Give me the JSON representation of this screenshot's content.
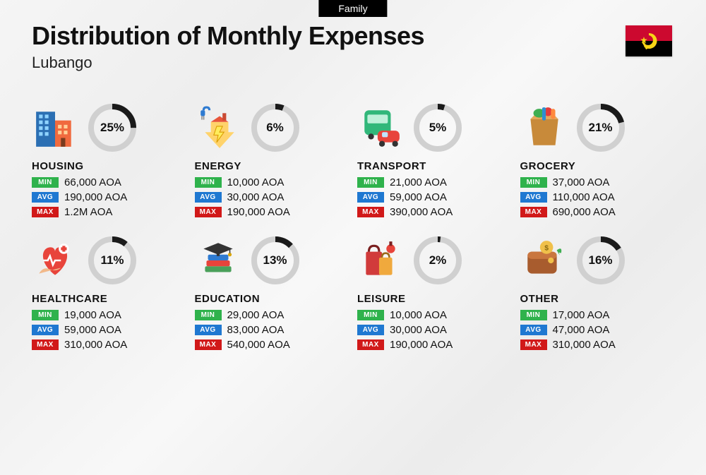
{
  "top_tag": "Family",
  "title": "Distribution of Monthly Expenses",
  "subtitle": "Lubango",
  "flag": {
    "top_color": "#cc092f",
    "bottom_color": "#000000",
    "emblem_color": "#f7d416"
  },
  "donut": {
    "track_color": "#d0d0d0",
    "fill_color": "#1a1a1a",
    "stroke_width": 8
  },
  "badges": {
    "min": {
      "label": "MIN",
      "bg": "#2fb24c"
    },
    "avg": {
      "label": "AVG",
      "bg": "#1f78d1"
    },
    "max": {
      "label": "MAX",
      "bg": "#d11919"
    }
  },
  "categories": [
    {
      "id": "housing",
      "name": "HOUSING",
      "percent": 25,
      "min": "66,000 AOA",
      "avg": "190,000 AOA",
      "max": "1.2M AOA",
      "icon": "housing-icon"
    },
    {
      "id": "energy",
      "name": "ENERGY",
      "percent": 6,
      "min": "10,000 AOA",
      "avg": "30,000 AOA",
      "max": "190,000 AOA",
      "icon": "energy-icon"
    },
    {
      "id": "transport",
      "name": "TRANSPORT",
      "percent": 5,
      "min": "21,000 AOA",
      "avg": "59,000 AOA",
      "max": "390,000 AOA",
      "icon": "transport-icon"
    },
    {
      "id": "grocery",
      "name": "GROCERY",
      "percent": 21,
      "min": "37,000 AOA",
      "avg": "110,000 AOA",
      "max": "690,000 AOA",
      "icon": "grocery-icon"
    },
    {
      "id": "healthcare",
      "name": "HEALTHCARE",
      "percent": 11,
      "min": "19,000 AOA",
      "avg": "59,000 AOA",
      "max": "310,000 AOA",
      "icon": "healthcare-icon"
    },
    {
      "id": "education",
      "name": "EDUCATION",
      "percent": 13,
      "min": "29,000 AOA",
      "avg": "83,000 AOA",
      "max": "540,000 AOA",
      "icon": "education-icon"
    },
    {
      "id": "leisure",
      "name": "LEISURE",
      "percent": 2,
      "min": "10,000 AOA",
      "avg": "30,000 AOA",
      "max": "190,000 AOA",
      "icon": "leisure-icon"
    },
    {
      "id": "other",
      "name": "OTHER",
      "percent": 16,
      "min": "17,000 AOA",
      "avg": "47,000 AOA",
      "max": "310,000 AOA",
      "icon": "other-icon"
    }
  ]
}
